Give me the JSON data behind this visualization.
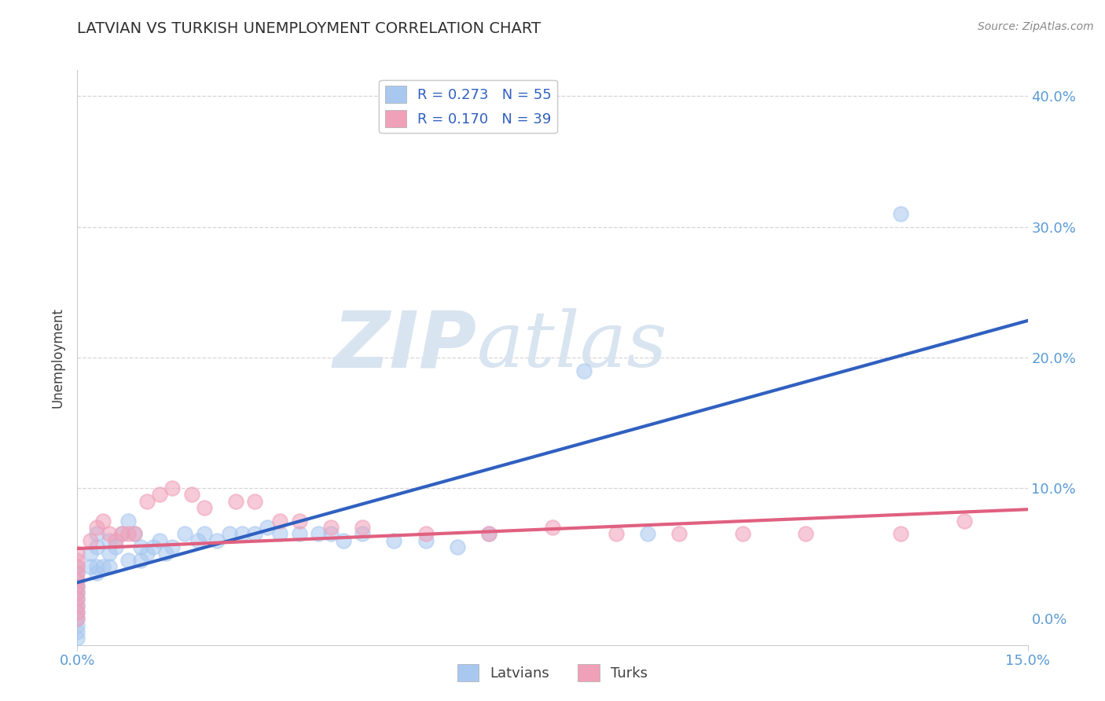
{
  "title": "LATVIAN VS TURKISH UNEMPLOYMENT CORRELATION CHART",
  "source": "Source: ZipAtlas.com",
  "ylabel_label": "Unemployment",
  "xlim": [
    0.0,
    0.15
  ],
  "ylim": [
    -0.02,
    0.42
  ],
  "legend_latvians": "R = 0.273   N = 55",
  "legend_turks": "R = 0.170   N = 39",
  "legend_label_latvians": "Latvians",
  "legend_label_turks": "Turks",
  "blue_color": "#A8C8F0",
  "pink_color": "#F0A0B8",
  "blue_line_color": "#3060C0",
  "pink_line_color": "#E06080",
  "title_color": "#303030",
  "axis_label_color": "#404040",
  "tick_color": "#5B9BD5",
  "grid_color": "#CCCCCC",
  "watermark_color": "#D8E4F0",
  "watermark_text": "ZIPatlas",
  "latvian_x": [
    0.0,
    0.0,
    0.0,
    0.0,
    0.0,
    0.0,
    0.0,
    0.0,
    0.0,
    0.0,
    0.0,
    0.0,
    0.002,
    0.002,
    0.003,
    0.003,
    0.003,
    0.003,
    0.004,
    0.005,
    0.005,
    0.005,
    0.006,
    0.007,
    0.008,
    0.008,
    0.009,
    0.01,
    0.01,
    0.011,
    0.012,
    0.013,
    0.014,
    0.015,
    0.017,
    0.019,
    0.02,
    0.022,
    0.024,
    0.026,
    0.028,
    0.03,
    0.032,
    0.035,
    0.038,
    0.04,
    0.042,
    0.045,
    0.05,
    0.055,
    0.06,
    0.065,
    0.08,
    0.09,
    0.13
  ],
  "latvian_y": [
    0.04,
    0.035,
    0.03,
    0.025,
    0.02,
    0.015,
    0.01,
    0.005,
    0.0,
    -0.005,
    -0.01,
    -0.015,
    0.05,
    0.04,
    0.065,
    0.055,
    0.04,
    0.035,
    0.04,
    0.06,
    0.05,
    0.04,
    0.055,
    0.065,
    0.075,
    0.045,
    0.065,
    0.055,
    0.045,
    0.05,
    0.055,
    0.06,
    0.05,
    0.055,
    0.065,
    0.06,
    0.065,
    0.06,
    0.065,
    0.065,
    0.065,
    0.07,
    0.065,
    0.065,
    0.065,
    0.065,
    0.06,
    0.065,
    0.06,
    0.06,
    0.055,
    0.065,
    0.19,
    0.065,
    0.31
  ],
  "turk_x": [
    0.0,
    0.0,
    0.0,
    0.0,
    0.0,
    0.0,
    0.0,
    0.0,
    0.0,
    0.0,
    0.0,
    0.002,
    0.003,
    0.004,
    0.005,
    0.006,
    0.007,
    0.008,
    0.009,
    0.011,
    0.013,
    0.015,
    0.018,
    0.02,
    0.025,
    0.028,
    0.032,
    0.035,
    0.04,
    0.045,
    0.055,
    0.065,
    0.075,
    0.085,
    0.095,
    0.105,
    0.115,
    0.13,
    0.14
  ],
  "turk_y": [
    0.05,
    0.045,
    0.04,
    0.035,
    0.03,
    0.025,
    0.02,
    0.015,
    0.01,
    0.005,
    0.0,
    0.06,
    0.07,
    0.075,
    0.065,
    0.06,
    0.065,
    0.065,
    0.065,
    0.09,
    0.095,
    0.1,
    0.095,
    0.085,
    0.09,
    0.09,
    0.075,
    0.075,
    0.07,
    0.07,
    0.065,
    0.065,
    0.07,
    0.065,
    0.065,
    0.065,
    0.065,
    0.065,
    0.075
  ]
}
